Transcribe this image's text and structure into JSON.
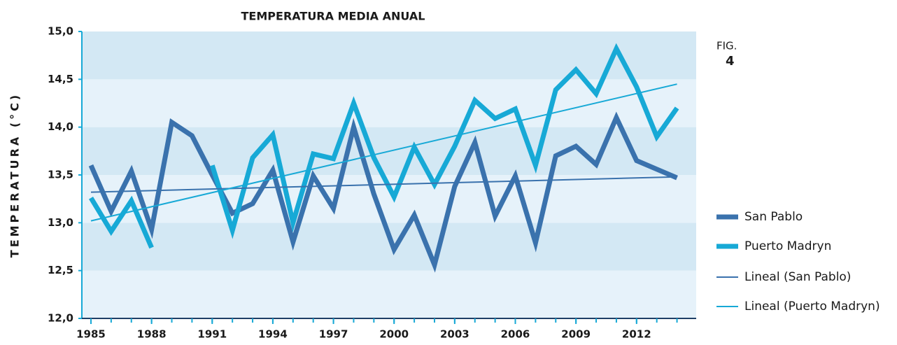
{
  "chart_data": {
    "type": "line",
    "title": "TEMPERATURA MEDIA ANUAL",
    "y_label": "TEMPERATURA (°C)",
    "annotation": {
      "label": "FIG.",
      "number": "4"
    },
    "x": [
      1985,
      1986,
      1987,
      1988,
      1989,
      1990,
      1991,
      1992,
      1993,
      1994,
      1995,
      1996,
      1997,
      1998,
      1999,
      2000,
      2001,
      2002,
      2003,
      2004,
      2005,
      2006,
      2007,
      2008,
      2009,
      2010,
      2011,
      2012,
      2013,
      2014
    ],
    "series": [
      {
        "name": "San Pablo",
        "color": "#3a72ad",
        "width": 7,
        "values": [
          13.6,
          13.12,
          13.54,
          12.93,
          14.05,
          13.91,
          13.5,
          13.1,
          13.2,
          13.55,
          12.8,
          13.49,
          13.15,
          14.0,
          13.3,
          12.72,
          13.08,
          12.56,
          13.38,
          13.84,
          13.07,
          13.49,
          12.79,
          13.7,
          13.8,
          13.61,
          14.1,
          13.65,
          13.56,
          13.47
        ]
      },
      {
        "name": "Puerto Madryn",
        "color": "#17a9d6",
        "width": 7,
        "values": [
          13.26,
          12.91,
          13.23,
          12.74,
          null,
          null,
          13.6,
          12.92,
          13.68,
          13.92,
          13.0,
          13.72,
          13.67,
          14.25,
          13.68,
          13.27,
          13.79,
          13.4,
          13.8,
          14.28,
          14.09,
          14.19,
          13.6,
          14.39,
          14.6,
          14.35,
          14.82,
          14.42,
          13.9,
          14.2
        ]
      },
      {
        "name": "Lineal (San Pablo)",
        "color": "#3a72ad",
        "width": 2,
        "x": [
          1985,
          2014
        ],
        "values": [
          13.32,
          13.48
        ]
      },
      {
        "name": "Lineal (Puerto Madryn)",
        "color": "#17a9d6",
        "width": 2,
        "x": [
          1985,
          2014
        ],
        "values": [
          13.02,
          14.45
        ]
      }
    ],
    "xlim": [
      1984.55,
      2014.95
    ],
    "xticks": [
      1985,
      1988,
      1991,
      1994,
      1997,
      2000,
      2003,
      2006,
      2009,
      2012
    ],
    "ylim": [
      12.0,
      15.0
    ],
    "yticks": [
      {
        "value": 12.0,
        "label": "12,0"
      },
      {
        "value": 12.5,
        "label": "12,5"
      },
      {
        "value": 13.0,
        "label": "13,0"
      },
      {
        "value": 13.5,
        "label": "13,5"
      },
      {
        "value": 14.0,
        "label": "14,0"
      },
      {
        "value": 14.5,
        "label": "14,5"
      },
      {
        "value": 15.0,
        "label": "15,0"
      }
    ],
    "background_bands": [
      "#e6f2fa",
      "#d3e8f4"
    ],
    "legend": "right"
  }
}
